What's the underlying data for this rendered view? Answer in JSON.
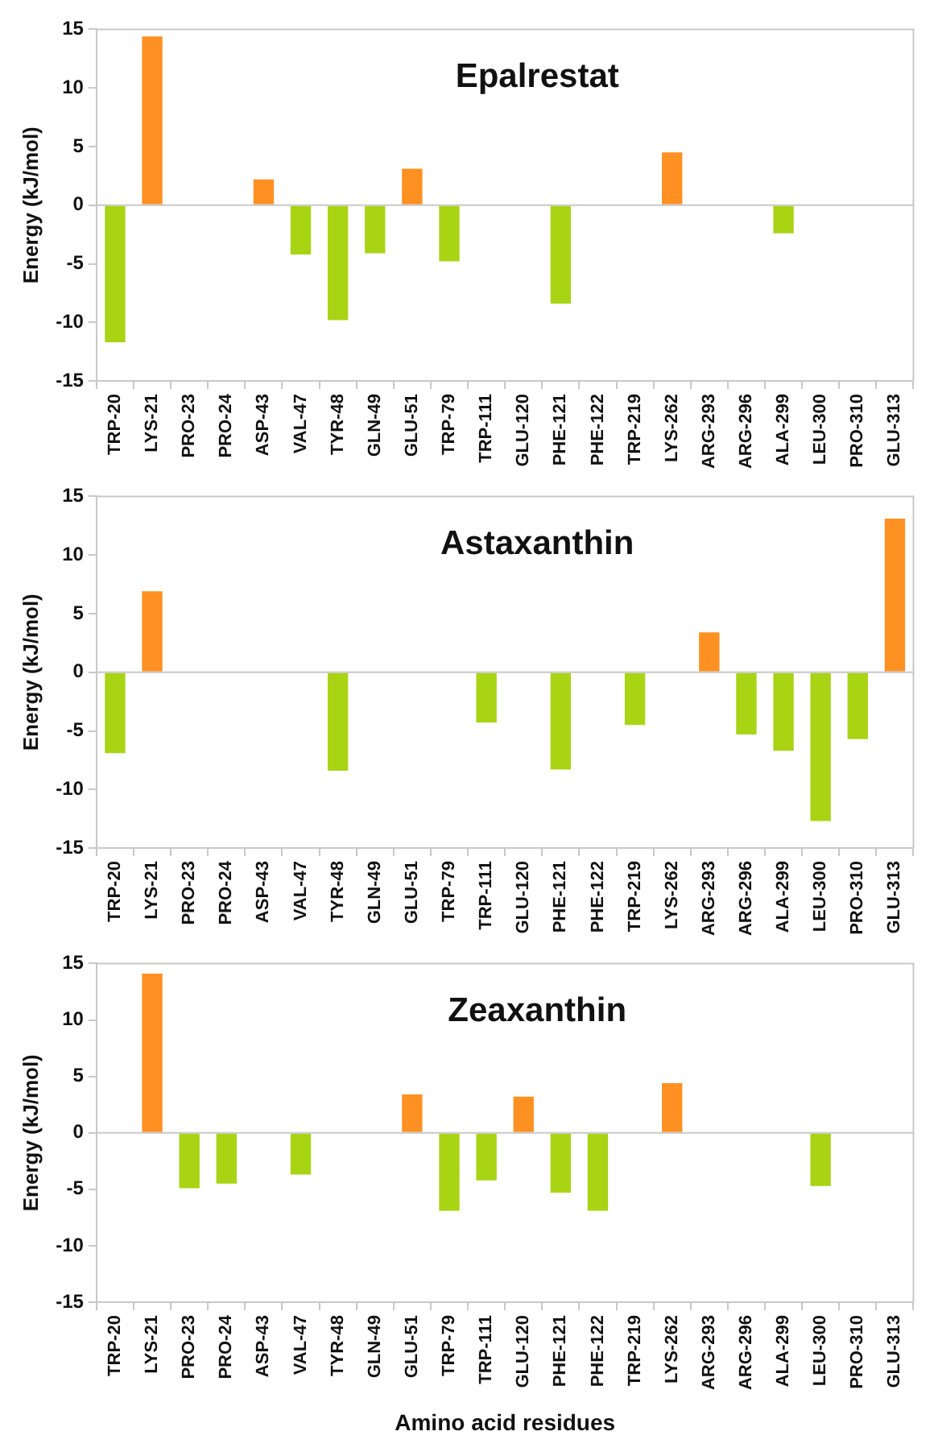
{
  "chart_data": [
    {
      "type": "bar",
      "title": "Epalrestat",
      "ylabel": "Energy (kJ/mol)",
      "categories": [
        "TRP-20",
        "LYS-21",
        "PRO-23",
        "PRO-24",
        "ASP-43",
        "VAL-47",
        "TYR-48",
        "GLN-49",
        "GLU-51",
        "TRP-79",
        "TRP-111",
        "GLU-120",
        "PHE-121",
        "PHE-122",
        "TRP-219",
        "LYS-262",
        "ARG-293",
        "ARG-296",
        "ALA-299",
        "LEU-300",
        "PRO-310",
        "GLU-313"
      ],
      "values": [
        -11.7,
        14.4,
        0,
        0,
        2.2,
        -4.2,
        -9.8,
        -4.1,
        3.1,
        -4.8,
        0,
        0,
        -8.4,
        0,
        0,
        4.5,
        0,
        0,
        -2.4,
        0,
        0,
        0
      ],
      "colors": [
        "#a8d414",
        "#ff9122",
        "#ff9122",
        "#ff9122",
        "#ff9122",
        "#a8d414",
        "#a8d414",
        "#a8d414",
        "#ff9122",
        "#a8d414",
        "#ff9122",
        "#ff9122",
        "#a8d414",
        "#ff9122",
        "#ff9122",
        "#ff9122",
        "#ff9122",
        "#ff9122",
        "#a8d414",
        "#ff9122",
        "#ff9122",
        "#ff9122"
      ],
      "ylim": [
        -15,
        15
      ],
      "yticks": [
        -15,
        -10,
        -5,
        0,
        5,
        10,
        15
      ]
    },
    {
      "type": "bar",
      "title": "Astaxanthin",
      "ylabel": "Energy (kJ/mol)",
      "categories": [
        "TRP-20",
        "LYS-21",
        "PRO-23",
        "PRO-24",
        "ASP-43",
        "VAL-47",
        "TYR-48",
        "GLN-49",
        "GLU-51",
        "TRP-79",
        "TRP-111",
        "GLU-120",
        "PHE-121",
        "PHE-122",
        "TRP-219",
        "LYS-262",
        "ARG-293",
        "ARG-296",
        "ALA-299",
        "LEU-300",
        "PRO-310",
        "GLU-313"
      ],
      "values": [
        -6.9,
        6.9,
        0,
        0,
        0,
        0,
        -8.4,
        0,
        0,
        0,
        -4.3,
        0,
        -8.3,
        0,
        -4.5,
        0,
        3.4,
        -5.3,
        -6.7,
        -12.7,
        -5.7,
        13.1
      ],
      "colors": [
        "#a8d414",
        "#ff9122",
        "#ff9122",
        "#ff9122",
        "#ff9122",
        "#ff9122",
        "#a8d414",
        "#ff9122",
        "#ff9122",
        "#ff9122",
        "#a8d414",
        "#ff9122",
        "#a8d414",
        "#ff9122",
        "#a8d414",
        "#ff9122",
        "#ff9122",
        "#a8d414",
        "#a8d414",
        "#a8d414",
        "#a8d414",
        "#ff9122"
      ],
      "ylim": [
        -15,
        15
      ],
      "yticks": [
        -15,
        -10,
        -5,
        0,
        5,
        10,
        15
      ]
    },
    {
      "type": "bar",
      "title": "Zeaxanthin",
      "ylabel": "Energy (kJ/mol)",
      "xlabel": "Amino acid residues",
      "categories": [
        "TRP-20",
        "LYS-21",
        "PRO-23",
        "PRO-24",
        "ASP-43",
        "VAL-47",
        "TYR-48",
        "GLN-49",
        "GLU-51",
        "TRP-79",
        "TRP-111",
        "GLU-120",
        "PHE-121",
        "PHE-122",
        "TRP-219",
        "LYS-262",
        "ARG-293",
        "ARG-296",
        "ALA-299",
        "LEU-300",
        "PRO-310",
        "GLU-313"
      ],
      "values": [
        0,
        14.1,
        -4.9,
        -4.5,
        0,
        -3.7,
        0,
        0,
        3.4,
        -6.9,
        -4.2,
        3.2,
        -5.3,
        -6.9,
        0,
        4.4,
        0,
        0,
        0,
        -4.7,
        0,
        0
      ],
      "colors": [
        "#ff9122",
        "#ff9122",
        "#a8d414",
        "#a8d414",
        "#ff9122",
        "#a8d414",
        "#ff9122",
        "#ff9122",
        "#ff9122",
        "#a8d414",
        "#a8d414",
        "#ff9122",
        "#a8d414",
        "#a8d414",
        "#ff9122",
        "#ff9122",
        "#ff9122",
        "#ff9122",
        "#ff9122",
        "#a8d414",
        "#ff9122",
        "#ff9122"
      ],
      "ylim": [
        -15,
        15
      ],
      "yticks": [
        -15,
        -10,
        -5,
        0,
        5,
        10,
        15
      ]
    }
  ]
}
